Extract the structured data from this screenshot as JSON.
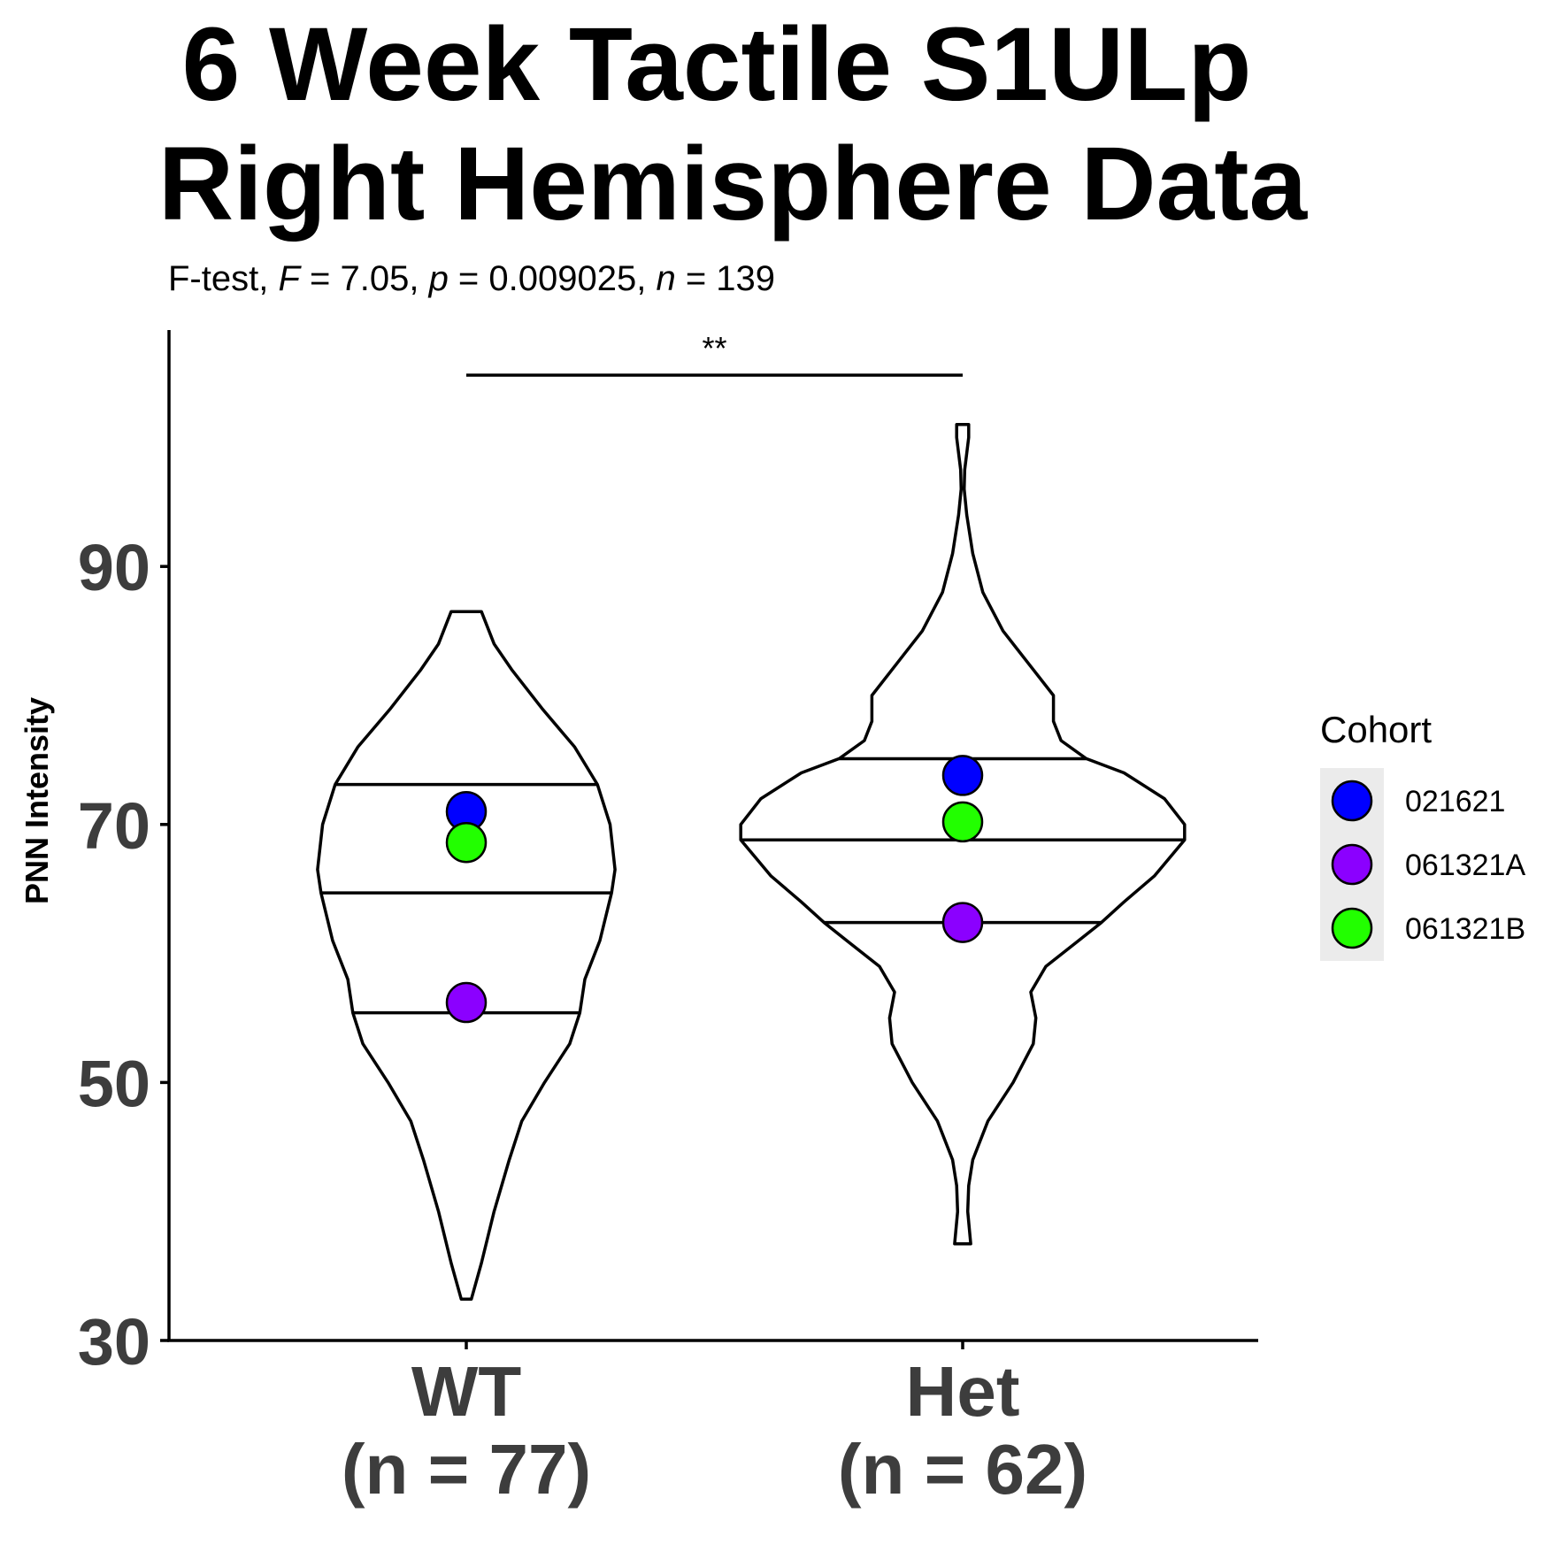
{
  "chart_data": {
    "type": "violin",
    "title_lines": [
      "6 Week Tactile S1ULp",
      "Right Hemisphere Data"
    ],
    "subtitle": {
      "test": "F-test, ",
      "stat_name": "F",
      "stat_value": " = 7.05, ",
      "p_name": "p",
      "p_value": " = 0.009025, ",
      "n_name": "n",
      "n_value": " = 139"
    },
    "ylabel": "PNN Intensity",
    "xlabel": "",
    "ylim": [
      30,
      108
    ],
    "yticks": [
      30,
      50,
      70,
      90
    ],
    "categories": [
      {
        "name": "WT",
        "count_label": "(n = 77)"
      },
      {
        "name": "Het",
        "count_label": "(n = 62)"
      }
    ],
    "violins": [
      {
        "group": "WT",
        "range": [
          33.2,
          86.5
        ],
        "quantiles": [
          55.4,
          64.7,
          73.1
        ],
        "profile": [
          [
            33.2,
            0.01
          ],
          [
            36.0,
            0.03
          ],
          [
            40.0,
            0.055
          ],
          [
            44.0,
            0.085
          ],
          [
            47.0,
            0.11
          ],
          [
            50.0,
            0.155
          ],
          [
            53.0,
            0.205
          ],
          [
            55.4,
            0.225
          ],
          [
            58.0,
            0.235
          ],
          [
            61.0,
            0.265
          ],
          [
            64.7,
            0.288
          ],
          [
            66.5,
            0.295
          ],
          [
            70.0,
            0.285
          ],
          [
            73.1,
            0.26
          ],
          [
            76.0,
            0.215
          ],
          [
            79.0,
            0.15
          ],
          [
            82.0,
            0.09
          ],
          [
            84.0,
            0.055
          ],
          [
            86.5,
            0.03
          ]
        ]
      },
      {
        "group": "Het",
        "range": [
          37.5,
          101.0
        ],
        "quantiles": [
          62.4,
          68.8,
          75.1
        ],
        "profile": [
          [
            37.5,
            0.016
          ],
          [
            40.0,
            0.01
          ],
          [
            42.0,
            0.012
          ],
          [
            44.0,
            0.02
          ],
          [
            47.0,
            0.05
          ],
          [
            50.0,
            0.1
          ],
          [
            53.0,
            0.14
          ],
          [
            55.0,
            0.145
          ],
          [
            57.0,
            0.135
          ],
          [
            59.0,
            0.165
          ],
          [
            61.0,
            0.23
          ],
          [
            62.4,
            0.275
          ],
          [
            64.0,
            0.32
          ],
          [
            66.0,
            0.38
          ],
          [
            68.8,
            0.44
          ],
          [
            70.0,
            0.44
          ],
          [
            72.0,
            0.4
          ],
          [
            74.0,
            0.32
          ],
          [
            75.1,
            0.245
          ],
          [
            76.5,
            0.195
          ],
          [
            78.0,
            0.18
          ],
          [
            80.0,
            0.18
          ],
          [
            82.0,
            0.14
          ],
          [
            85.0,
            0.08
          ],
          [
            88.0,
            0.04
          ],
          [
            91.0,
            0.02
          ],
          [
            94.0,
            0.008
          ],
          [
            96.0,
            0.003
          ],
          [
            97.5,
            0.004
          ],
          [
            100.0,
            0.012
          ],
          [
            101.0,
            0.012
          ]
        ]
      }
    ],
    "points": [
      {
        "group": "WT",
        "cohort": "021621",
        "y": 71.0
      },
      {
        "group": "WT",
        "cohort": "061321B",
        "y": 68.6
      },
      {
        "group": "WT",
        "cohort": "061321A",
        "y": 56.2
      },
      {
        "group": "Het",
        "cohort": "021621",
        "y": 73.8
      },
      {
        "group": "Het",
        "cohort": "061321B",
        "y": 70.2
      },
      {
        "group": "Het",
        "cohort": "061321A",
        "y": 62.4
      }
    ],
    "significance": {
      "label": "**",
      "from": "WT",
      "to": "Het"
    },
    "legend": {
      "title": "Cohort",
      "position": "right",
      "entries": [
        {
          "name": "021621",
          "color": "#0000ff"
        },
        {
          "name": "061321A",
          "color": "#8b00ff"
        },
        {
          "name": "061321B",
          "color": "#22ff00"
        }
      ]
    },
    "grid": false
  }
}
